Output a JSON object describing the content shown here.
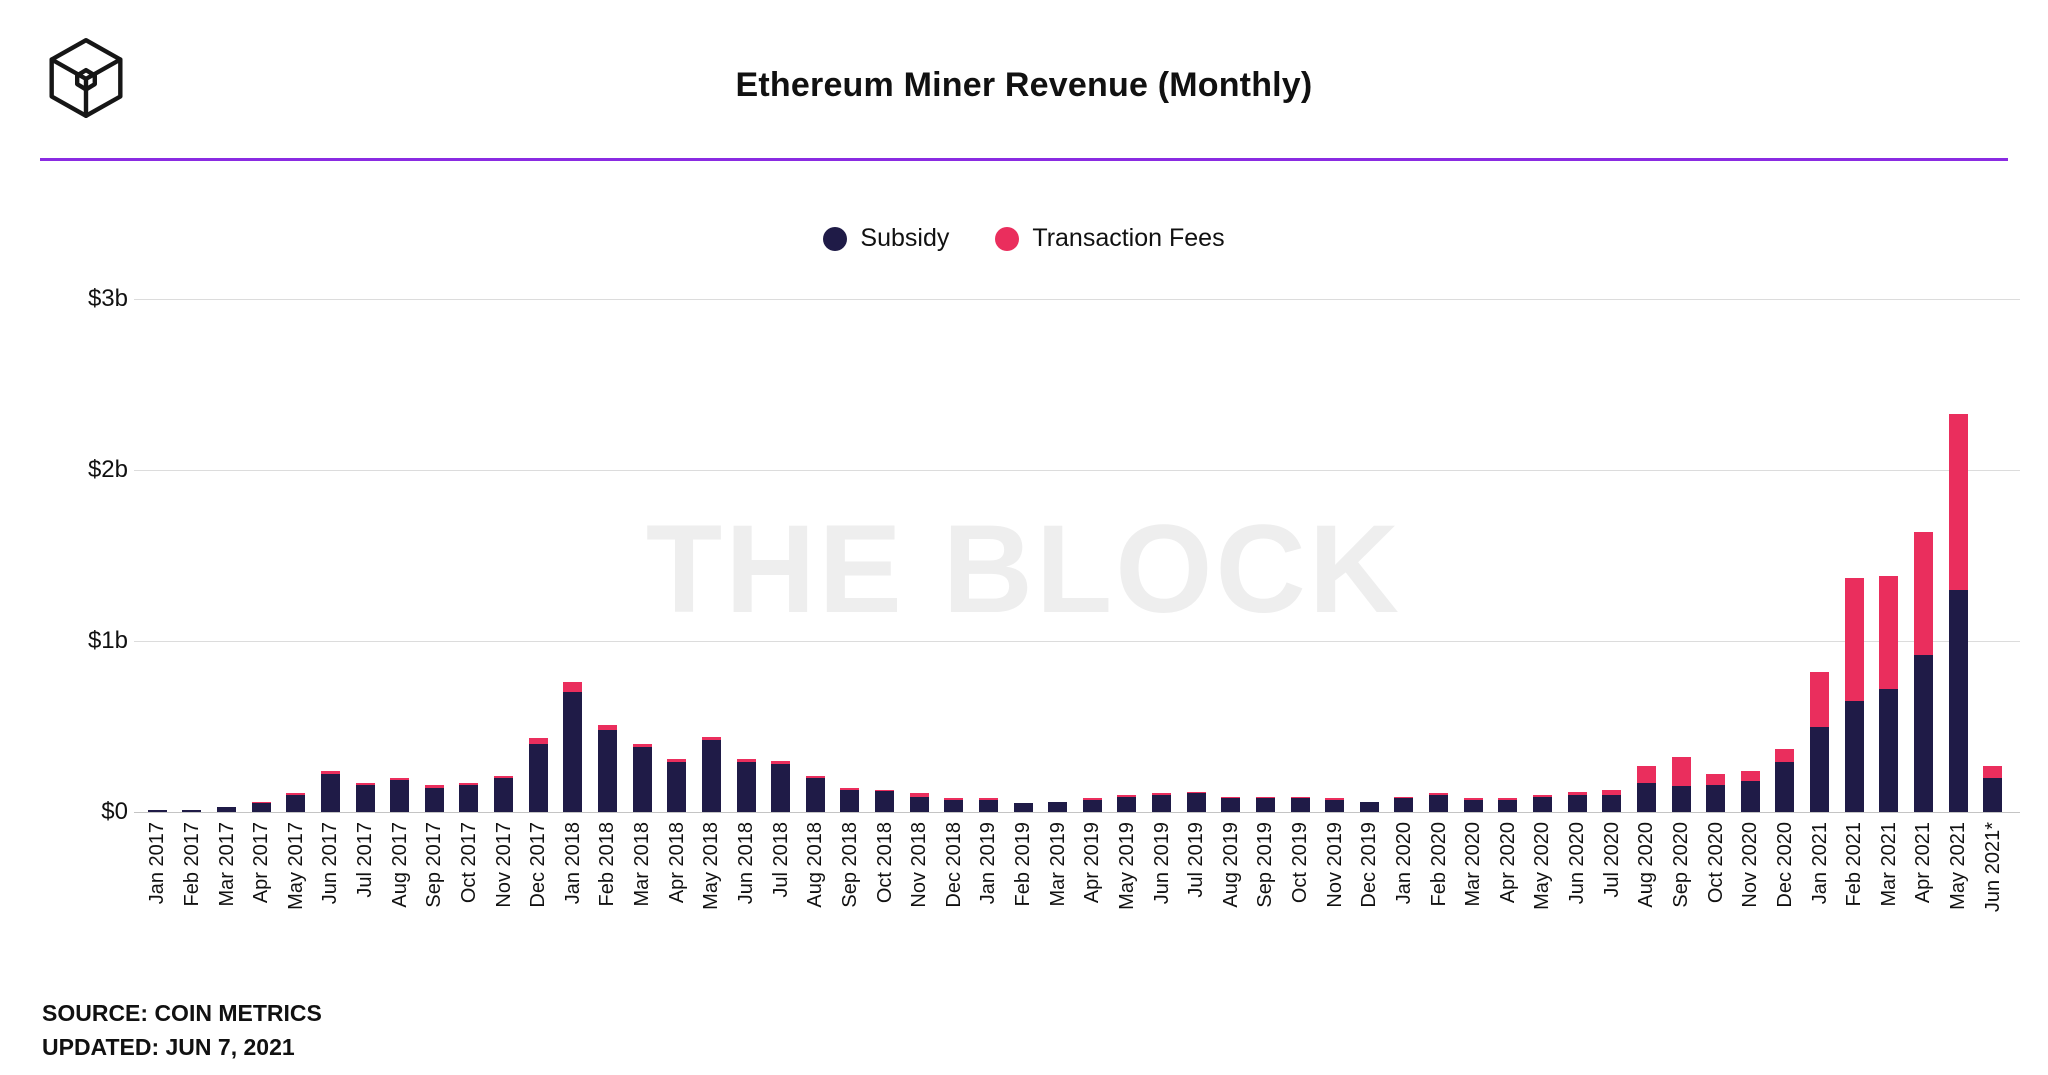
{
  "header": {
    "title": "Ethereum Miner Revenue (Monthly)",
    "logo": "the-block-cube-logo"
  },
  "legend": {
    "items": [
      {
        "label": "Subsidy",
        "color": "#1f1b47"
      },
      {
        "label": "Transaction Fees",
        "color": "#ea2e5d"
      }
    ]
  },
  "watermark": "THE BLOCK",
  "footer": {
    "source": "SOURCE: COIN METRICS",
    "updated": "UPDATED: JUN 7, 2021"
  },
  "colors": {
    "subsidy": "#1f1b47",
    "fees": "#ea2e5d",
    "accent_line": "#8a2be2",
    "gridline": "#dcdcdc",
    "watermark": "#eeeeee",
    "text": "#111111"
  },
  "chart_data": {
    "type": "bar",
    "stacked": true,
    "title": "Ethereum Miner Revenue (Monthly)",
    "xlabel": "",
    "ylabel": "",
    "units": "USD billions",
    "ylim": [
      0,
      3
    ],
    "grid": true,
    "legend_position": "top",
    "yticks": [
      {
        "value": 0,
        "label": "$0"
      },
      {
        "value": 1,
        "label": "$1b"
      },
      {
        "value": 2,
        "label": "$2b"
      },
      {
        "value": 3,
        "label": "$3b"
      }
    ],
    "categories": [
      "Jan 2017",
      "Feb 2017",
      "Mar 2017",
      "Apr 2017",
      "May 2017",
      "Jun 2017",
      "Jul 2017",
      "Aug 2017",
      "Sep 2017",
      "Oct 2017",
      "Nov 2017",
      "Dec 2017",
      "Jan 2018",
      "Feb 2018",
      "Mar 2018",
      "Apr 2018",
      "May 2018",
      "Jun 2018",
      "Jul 2018",
      "Aug 2018",
      "Sep 2018",
      "Oct 2018",
      "Nov 2018",
      "Dec 2018",
      "Jan 2019",
      "Feb 2019",
      "Mar 2019",
      "Apr 2019",
      "May 2019",
      "Jun 2019",
      "Jul 2019",
      "Aug 2019",
      "Sep 2019",
      "Oct 2019",
      "Nov 2019",
      "Dec 2019",
      "Jan 2020",
      "Feb 2020",
      "Mar 2020",
      "Apr 2020",
      "May 2020",
      "Jun 2020",
      "Jul 2020",
      "Aug 2020",
      "Sep 2020",
      "Oct 2020",
      "Nov 2020",
      "Dec 2020",
      "Jan 2021",
      "Feb 2021",
      "Mar 2021",
      "Apr 2021",
      "May 2021",
      "Jun 2021*"
    ],
    "series": [
      {
        "name": "Subsidy",
        "color": "#1f1b47",
        "values": [
          0.01,
          0.01,
          0.03,
          0.05,
          0.1,
          0.22,
          0.16,
          0.19,
          0.14,
          0.16,
          0.2,
          0.4,
          0.7,
          0.48,
          0.38,
          0.29,
          0.42,
          0.29,
          0.28,
          0.2,
          0.13,
          0.12,
          0.09,
          0.07,
          0.07,
          0.05,
          0.06,
          0.07,
          0.09,
          0.1,
          0.11,
          0.08,
          0.08,
          0.08,
          0.07,
          0.06,
          0.08,
          0.1,
          0.07,
          0.07,
          0.09,
          0.1,
          0.1,
          0.17,
          0.15,
          0.16,
          0.18,
          0.29,
          0.5,
          0.65,
          0.72,
          0.92,
          1.3,
          0.2
        ]
      },
      {
        "name": "Transaction Fees",
        "color": "#ea2e5d",
        "values": [
          0.0,
          0.0,
          0.0,
          0.01,
          0.01,
          0.02,
          0.01,
          0.01,
          0.02,
          0.01,
          0.01,
          0.03,
          0.06,
          0.03,
          0.02,
          0.02,
          0.02,
          0.02,
          0.02,
          0.01,
          0.01,
          0.01,
          0.02,
          0.01,
          0.01,
          0.0,
          0.0,
          0.01,
          0.01,
          0.01,
          0.01,
          0.01,
          0.01,
          0.01,
          0.01,
          0.0,
          0.01,
          0.01,
          0.01,
          0.01,
          0.01,
          0.02,
          0.03,
          0.1,
          0.17,
          0.06,
          0.06,
          0.08,
          0.32,
          0.72,
          0.66,
          0.72,
          1.03,
          0.07
        ]
      }
    ]
  }
}
